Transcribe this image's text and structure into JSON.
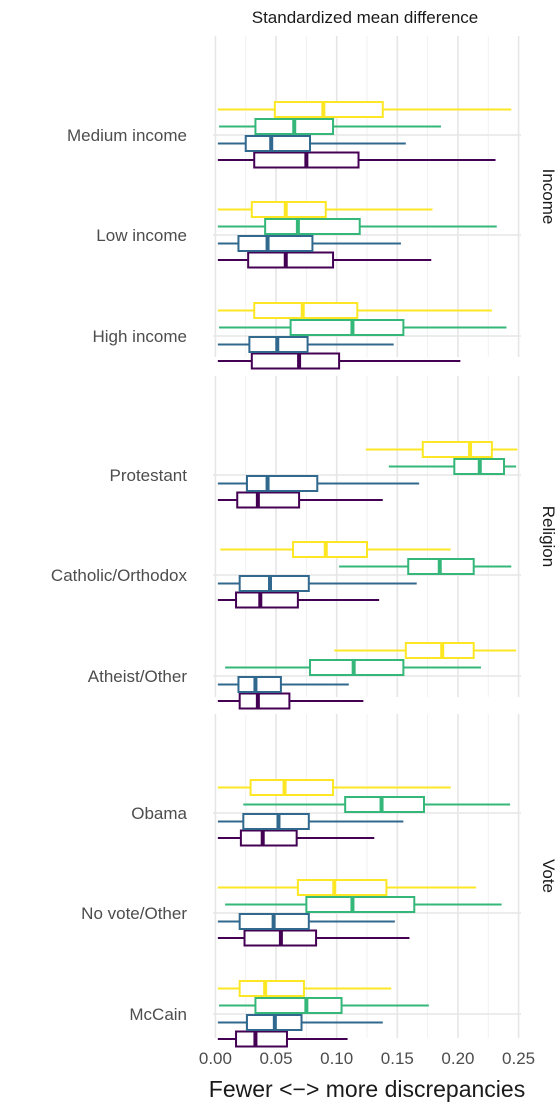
{
  "chart_data": {
    "type": "boxplot",
    "title": "Standardized mean difference",
    "xlabel": "Fewer <−> more discrepancies",
    "xlim": [
      -0.002,
      0.252
    ],
    "xticks": [
      "0.00",
      "0.05",
      "0.10",
      "0.15",
      "0.20",
      "0.25"
    ],
    "xtick_values": [
      0,
      0.05,
      0.1,
      0.15,
      0.2,
      0.25
    ],
    "grid": true,
    "series_colors": [
      "#440154",
      "#31688e",
      "#35b779",
      "#fde725"
    ],
    "box_fields": [
      "whisker_low",
      "q1",
      "median",
      "q3",
      "whisker_high"
    ],
    "facets": [
      {
        "strip": "Income",
        "groups": [
          {
            "label": "Medium income",
            "boxes": [
              [
                0.002,
                0.032,
                0.075,
                0.118,
                0.231
              ],
              [
                0.002,
                0.025,
                0.046,
                0.078,
                0.157
              ],
              [
                0.003,
                0.033,
                0.065,
                0.097,
                0.186
              ],
              [
                0.002,
                0.049,
                0.089,
                0.138,
                0.244
              ]
            ]
          },
          {
            "label": "Low income",
            "boxes": [
              [
                0.002,
                0.027,
                0.058,
                0.097,
                0.178
              ],
              [
                0.002,
                0.019,
                0.043,
                0.08,
                0.153
              ],
              [
                0.002,
                0.041,
                0.068,
                0.119,
                0.232
              ],
              [
                0.002,
                0.03,
                0.058,
                0.091,
                0.179
              ]
            ]
          },
          {
            "label": "High income",
            "boxes": [
              [
                0.002,
                0.03,
                0.069,
                0.102,
                0.202
              ],
              [
                0.002,
                0.028,
                0.051,
                0.076,
                0.147
              ],
              [
                0.003,
                0.062,
                0.113,
                0.155,
                0.24
              ],
              [
                0.002,
                0.032,
                0.072,
                0.117,
                0.228
              ]
            ]
          }
        ]
      },
      {
        "strip": "Religion",
        "groups": [
          {
            "label": "Protestant",
            "boxes": [
              [
                0.002,
                0.018,
                0.035,
                0.069,
                0.138
              ],
              [
                0.002,
                0.026,
                0.043,
                0.084,
                0.168
              ],
              [
                0.143,
                0.197,
                0.218,
                0.238,
                0.248
              ],
              [
                0.124,
                0.171,
                0.21,
                0.228,
                0.249
              ]
            ]
          },
          {
            "label": "Catholic/Orthodox",
            "boxes": [
              [
                0.002,
                0.017,
                0.037,
                0.068,
                0.135
              ],
              [
                0.002,
                0.02,
                0.045,
                0.077,
                0.166
              ],
              [
                0.102,
                0.159,
                0.185,
                0.213,
                0.244
              ],
              [
                0.004,
                0.064,
                0.091,
                0.125,
                0.194
              ]
            ]
          },
          {
            "label": "Atheist/Other",
            "boxes": [
              [
                0.002,
                0.02,
                0.035,
                0.061,
                0.122
              ],
              [
                0.002,
                0.019,
                0.033,
                0.054,
                0.11
              ],
              [
                0.008,
                0.078,
                0.114,
                0.155,
                0.219
              ],
              [
                0.098,
                0.157,
                0.187,
                0.213,
                0.248
              ]
            ]
          }
        ]
      },
      {
        "strip": "Vote",
        "groups": [
          {
            "label": "Obama",
            "boxes": [
              [
                0.002,
                0.021,
                0.039,
                0.067,
                0.131
              ],
              [
                0.002,
                0.023,
                0.052,
                0.077,
                0.155
              ],
              [
                0.023,
                0.107,
                0.137,
                0.172,
                0.243
              ],
              [
                0.002,
                0.029,
                0.057,
                0.097,
                0.194
              ]
            ]
          },
          {
            "label": "No vote/Other",
            "boxes": [
              [
                0.002,
                0.024,
                0.054,
                0.083,
                0.16
              ],
              [
                0.002,
                0.02,
                0.048,
                0.077,
                0.148
              ],
              [
                0.008,
                0.075,
                0.113,
                0.164,
                0.236
              ],
              [
                0.002,
                0.068,
                0.098,
                0.141,
                0.215
              ]
            ]
          },
          {
            "label": "McCain",
            "boxes": [
              [
                0.002,
                0.017,
                0.033,
                0.059,
                0.109
              ],
              [
                0.002,
                0.026,
                0.049,
                0.071,
                0.138
              ],
              [
                0.003,
                0.033,
                0.075,
                0.104,
                0.176
              ],
              [
                0.002,
                0.02,
                0.041,
                0.073,
                0.145
              ]
            ]
          }
        ]
      }
    ]
  }
}
